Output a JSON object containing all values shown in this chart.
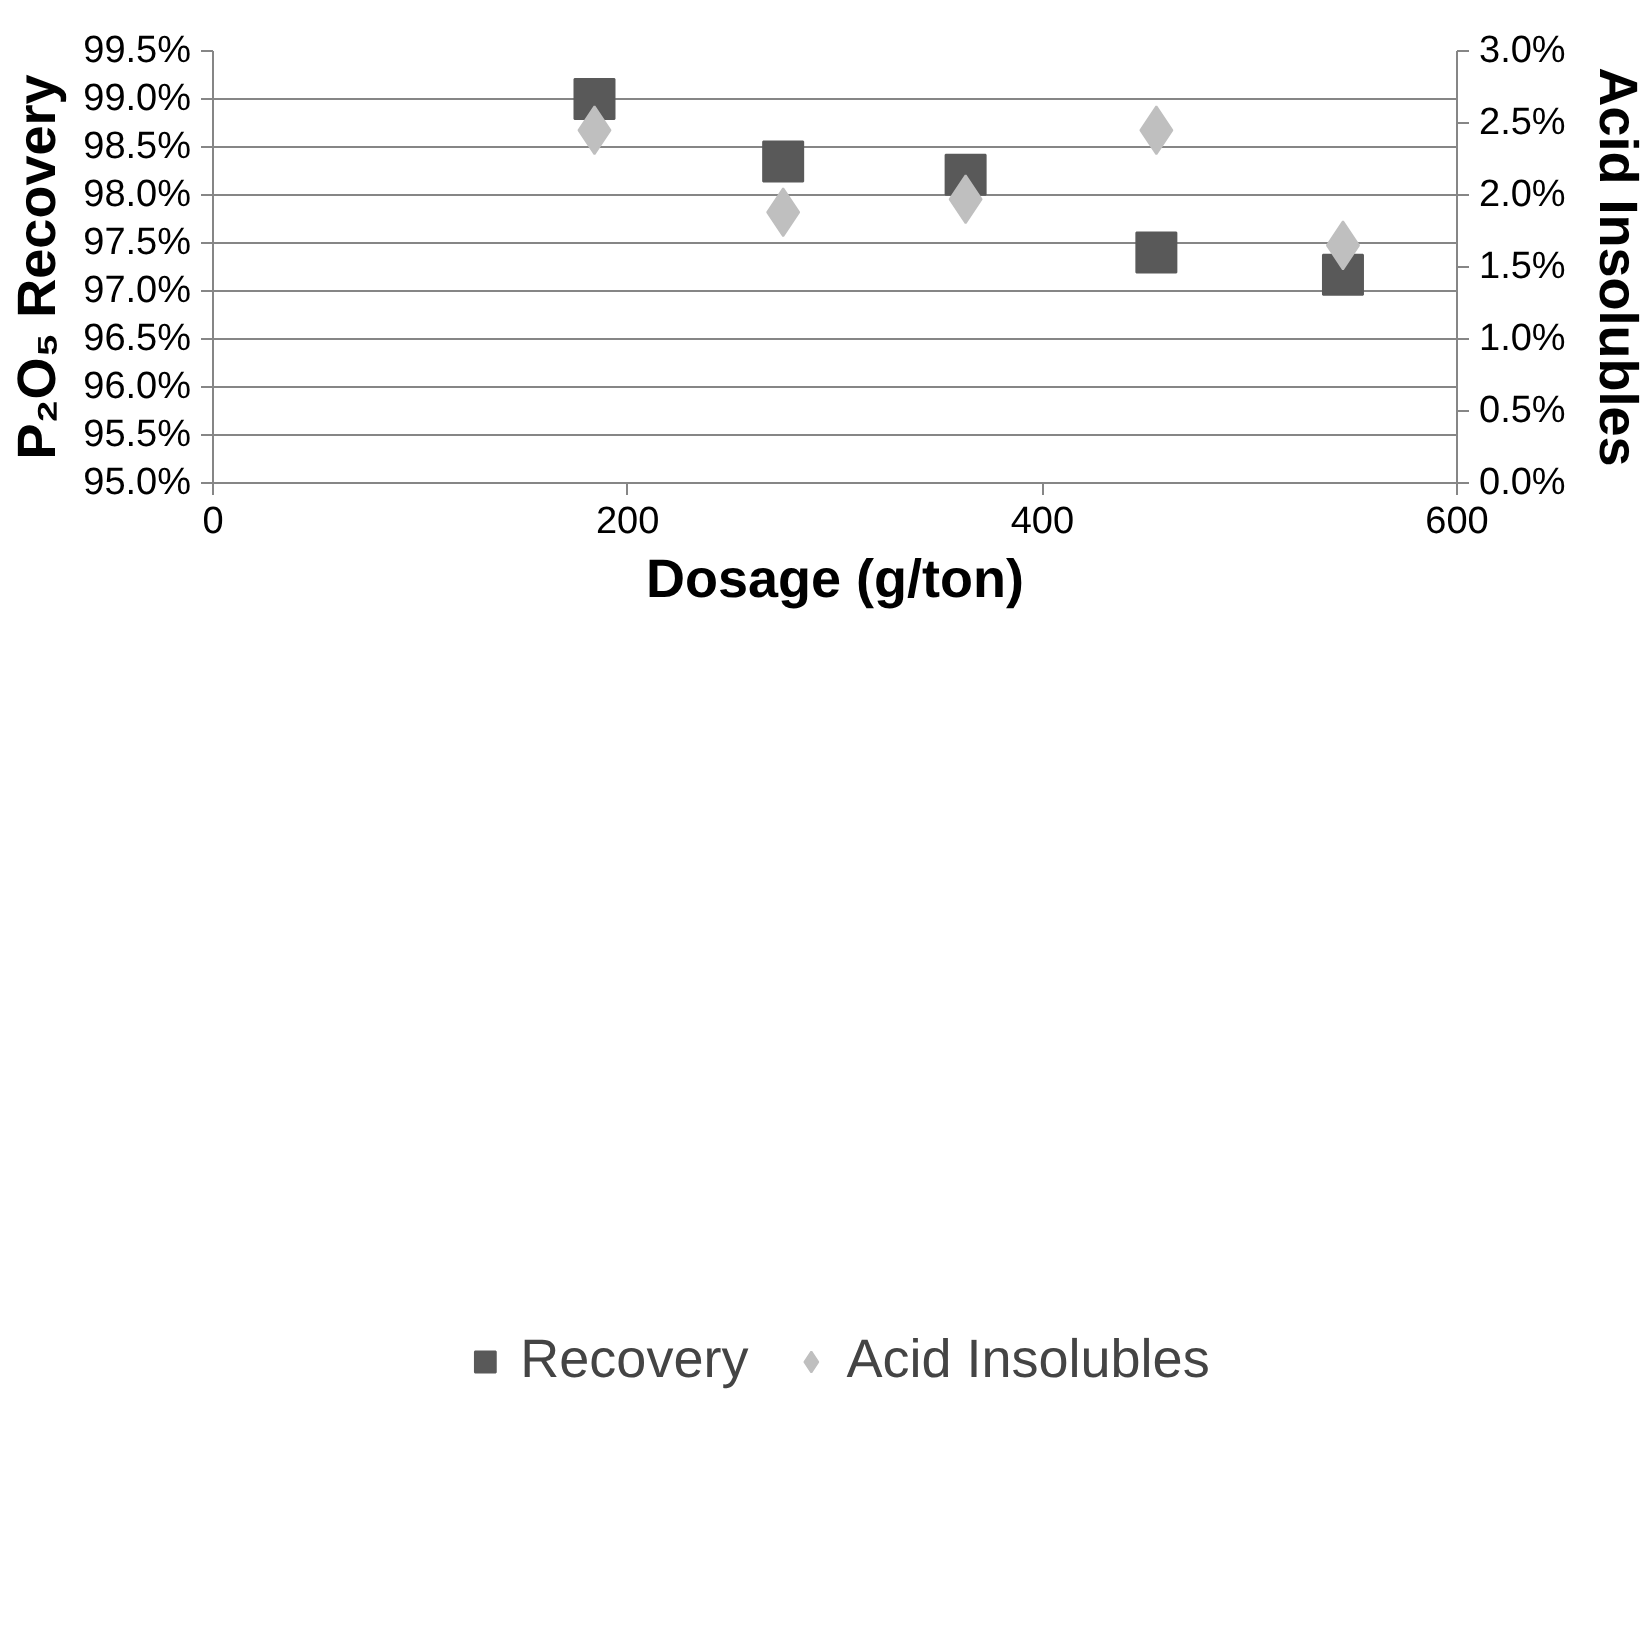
{
  "chart_data": {
    "type": "scatter",
    "xlabel": "Dosage (g/ton)",
    "ylabel": "P₂O₅ Recovery",
    "y2label": "Acid Insolubles",
    "x": [
      184,
      275,
      363,
      455,
      545
    ],
    "series": [
      {
        "name": "Recovery",
        "color": "#595959",
        "marker": "square",
        "values": [
          99.0,
          98.35,
          98.21,
          97.4,
          97.17
        ]
      },
      {
        "name": "Acid Insolubles",
        "color": "#bfbfbf",
        "marker": "diamond",
        "axis": "y2",
        "values": [
          2.45,
          1.88,
          1.97,
          2.45,
          1.65
        ]
      }
    ],
    "xlim": [
      0,
      600
    ],
    "xticks": [
      0,
      200,
      400,
      600
    ],
    "ylim": [
      95.0,
      99.5
    ],
    "yticks": [
      {
        "value": 95.0,
        "label": "95.0%"
      },
      {
        "value": 95.5,
        "label": "95.5%"
      },
      {
        "value": 96.0,
        "label": "96.0%"
      },
      {
        "value": 96.5,
        "label": "96.5%"
      },
      {
        "value": 97.0,
        "label": "97.0%"
      },
      {
        "value": 97.5,
        "label": "97.5%"
      },
      {
        "value": 98.0,
        "label": "98.0%"
      },
      {
        "value": 98.5,
        "label": "98.5%"
      },
      {
        "value": 99.0,
        "label": "99.0%"
      },
      {
        "value": 99.5,
        "label": "99.5%"
      }
    ],
    "y2lim": [
      0.0,
      3.0
    ],
    "y2ticks": [
      {
        "value": 0.0,
        "label": "0.0%"
      },
      {
        "value": 0.5,
        "label": "0.5%"
      },
      {
        "value": 1.0,
        "label": "1.0%"
      },
      {
        "value": 1.5,
        "label": "1.5%"
      },
      {
        "value": 2.0,
        "label": "2.0%"
      },
      {
        "value": 2.5,
        "label": "2.5%"
      },
      {
        "value": 3.0,
        "label": "3.0%"
      }
    ],
    "grid": "y",
    "legend": "bottom"
  }
}
